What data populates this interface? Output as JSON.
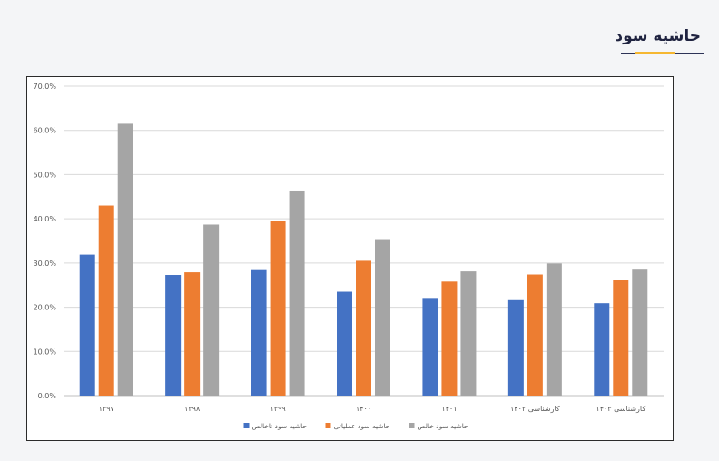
{
  "page": {
    "heading": "حاشیه سود"
  },
  "colors": {
    "gross": "#4472c4",
    "operating": "#ed7d31",
    "net": "#a5a5a5",
    "heading_accent": "#f5b731",
    "heading_line": "#2d3357"
  },
  "chart_data": {
    "type": "bar",
    "categories": [
      "۱۳۹۷",
      "۱۳۹۸",
      "۱۳۹۹",
      "۱۴۰۰",
      "۱۴۰۱",
      "کارشناسی ۱۴۰۲",
      "کارشناسی ۱۴۰۳"
    ],
    "series": [
      {
        "name": "حاشیه سود ناخالص",
        "values": [
          31.9,
          27.3,
          28.6,
          23.5,
          22.1,
          21.6,
          20.9
        ]
      },
      {
        "name": "حاشیه سود عملیاتی",
        "values": [
          43.0,
          27.9,
          39.5,
          30.5,
          25.8,
          27.4,
          26.2
        ]
      },
      {
        "name": "حاشیه سود خالص",
        "values": [
          61.5,
          38.7,
          46.4,
          35.4,
          28.1,
          29.9,
          28.7
        ]
      }
    ],
    "y_ticks": [
      "0.0%",
      "10.0%",
      "20.0%",
      "30.0%",
      "40.0%",
      "50.0%",
      "60.0%",
      "70.0%"
    ],
    "ylim": [
      0,
      70
    ],
    "grid": true,
    "legend_position": "bottom"
  }
}
